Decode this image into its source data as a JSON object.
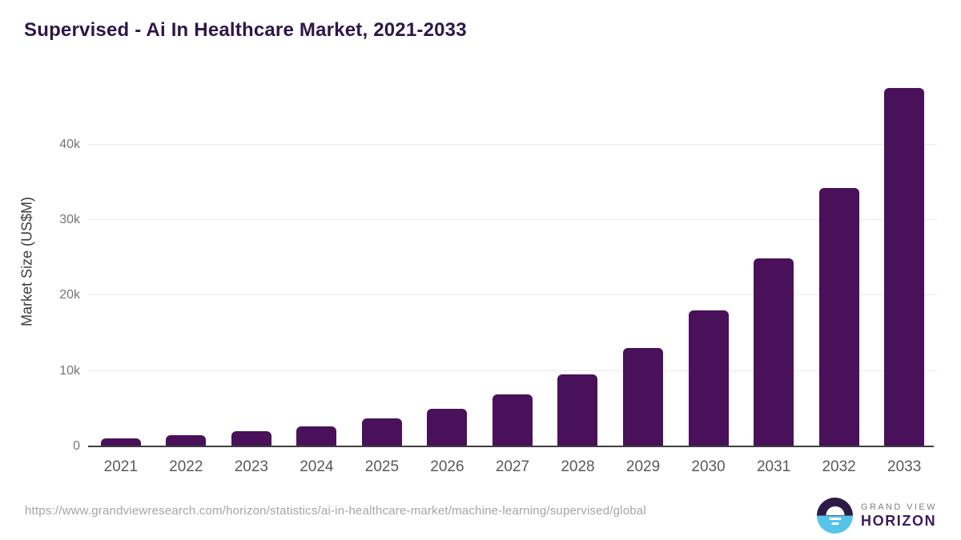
{
  "title": "Supervised - Ai In Healthcare Market, 2021-2033",
  "chart_data": {
    "type": "bar",
    "title": "Supervised - Ai In Healthcare Market, 2021-2033",
    "categories": [
      "2021",
      "2022",
      "2023",
      "2024",
      "2025",
      "2026",
      "2027",
      "2028",
      "2029",
      "2030",
      "2031",
      "2032",
      "2033"
    ],
    "values": [
      1100,
      1500,
      2000,
      2650,
      3700,
      5000,
      6900,
      9500,
      13000,
      18000,
      24900,
      34300,
      47500
    ],
    "xlabel": "",
    "ylabel": "Market Size (US$M)",
    "ylim": [
      0,
      49000
    ],
    "yticks": [
      {
        "value": 0,
        "label": "0"
      },
      {
        "value": 10000,
        "label": "10k"
      },
      {
        "value": 20000,
        "label": "20k"
      },
      {
        "value": 30000,
        "label": "30k"
      },
      {
        "value": 40000,
        "label": "40k"
      }
    ],
    "grid": true,
    "legend": false,
    "bar_color": "#49115a"
  },
  "footer": {
    "source_url": "https://www.grandviewresearch.com/horizon/statistics/ai-in-healthcare-market/machine-learning/supervised/global",
    "logo": {
      "line1": "GRAND VIEW",
      "line2": "HORIZON"
    }
  },
  "colors": {
    "bar": "#49115a",
    "title": "#2e1748",
    "gridline": "#e9e9e9",
    "axis_line": "#3f3f3f",
    "y_tick_text": "#767676",
    "x_tick_text": "#59595b",
    "url_text": "#a5a5a5",
    "logo_dark": "#2e1a47",
    "logo_blue": "#56c3ea"
  }
}
